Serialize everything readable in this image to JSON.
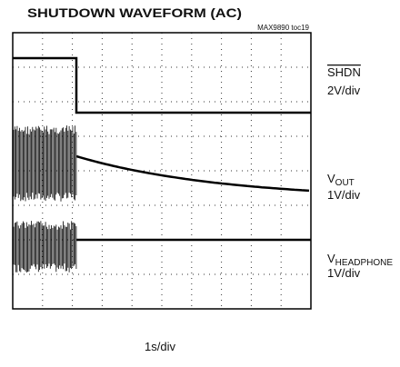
{
  "title": "SHUTDOWN WAVEFORM (AC)",
  "figure_id": "MAX9890 toc19",
  "channels": [
    {
      "name": {
        "main": "SHDN",
        "sub": ""
      },
      "scale": "2V/div"
    },
    {
      "name": {
        "main": "V",
        "sub": "OUT"
      },
      "scale": "1V/div"
    },
    {
      "name": {
        "main": "V",
        "sub": "HEADPHONE"
      },
      "scale": "1V/div"
    }
  ],
  "x_scale": "1s/div"
}
